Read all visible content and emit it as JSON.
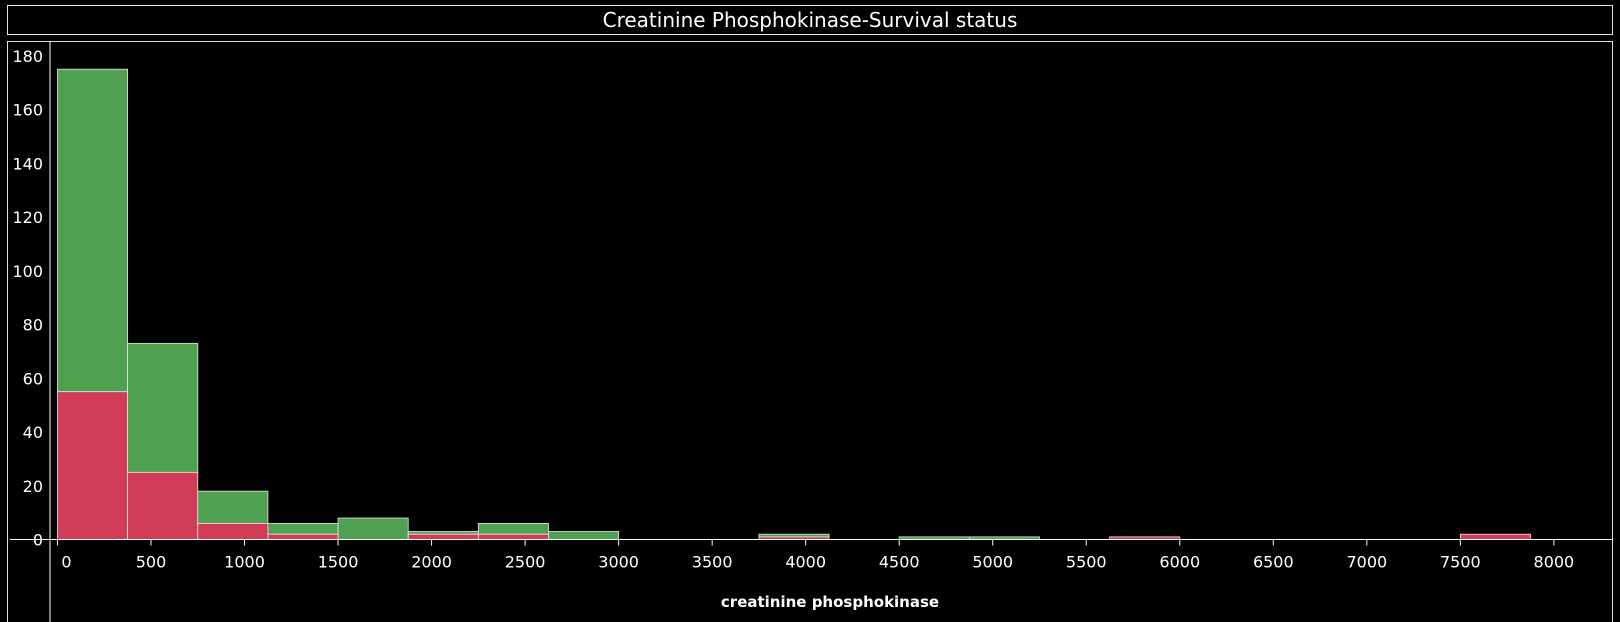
{
  "chart_data": {
    "type": "bar",
    "title": "Creatinine Phosphokinase-Survival status",
    "xlabel": "creatinine phosphokinase",
    "ylabel": "",
    "bin_width": 375,
    "x_ticks": [
      0,
      500,
      1000,
      1500,
      2000,
      2500,
      3000,
      3500,
      4000,
      4500,
      5000,
      5500,
      6000,
      6500,
      7000,
      7500,
      8000
    ],
    "y_ticks": [
      0,
      20,
      40,
      60,
      80,
      100,
      120,
      140,
      160,
      180
    ],
    "xlim": [
      -40,
      8300
    ],
    "ylim": [
      -5,
      184
    ],
    "bins": [
      {
        "start": 0,
        "died": 55,
        "survived": 120
      },
      {
        "start": 375,
        "died": 25,
        "survived": 48
      },
      {
        "start": 750,
        "died": 6,
        "survived": 12
      },
      {
        "start": 1125,
        "died": 2,
        "survived": 4
      },
      {
        "start": 1500,
        "died": 0,
        "survived": 8
      },
      {
        "start": 1875,
        "died": 2,
        "survived": 1
      },
      {
        "start": 2250,
        "died": 2,
        "survived": 4
      },
      {
        "start": 2625,
        "died": 0,
        "survived": 3
      },
      {
        "start": 3750,
        "died": 1,
        "survived": 1
      },
      {
        "start": 4500,
        "died": 0,
        "survived": 1
      },
      {
        "start": 4875,
        "died": 0,
        "survived": 1
      },
      {
        "start": 5625,
        "died": 1,
        "survived": 0
      },
      {
        "start": 7500,
        "died": 2,
        "survived": 0
      }
    ],
    "colors": {
      "died": "#d13c56",
      "survived": "#4fa050",
      "axis": "#ffffff"
    },
    "grid": false,
    "legend": "none"
  }
}
